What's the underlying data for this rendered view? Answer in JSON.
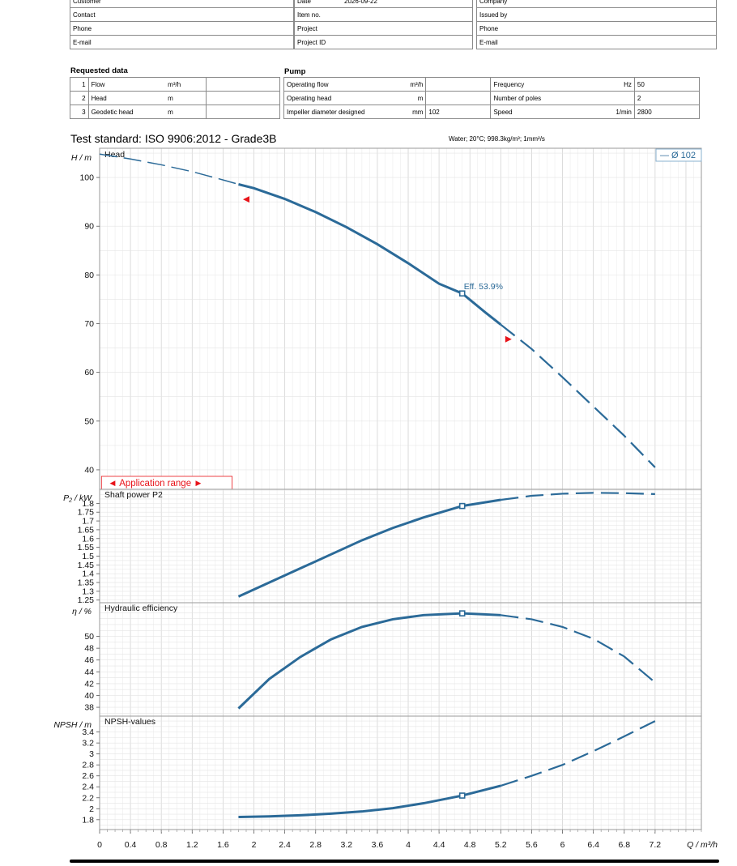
{
  "header": {
    "left": [
      {
        "label": "Customer",
        "value": ""
      },
      {
        "label": "Contact",
        "value": ""
      },
      {
        "label": "Phone",
        "value": ""
      },
      {
        "label": "E-mail",
        "value": ""
      }
    ],
    "middle": [
      {
        "label": "Date",
        "value": "2026-09-22"
      },
      {
        "label": "Item no.",
        "value": ""
      },
      {
        "label": "Project",
        "value": ""
      },
      {
        "label": "Project ID",
        "value": ""
      }
    ],
    "right": [
      {
        "label": "Company",
        "value": ""
      },
      {
        "label": "Issued by",
        "value": ""
      },
      {
        "label": "Phone",
        "value": ""
      },
      {
        "label": "E-mail",
        "value": ""
      }
    ]
  },
  "requested": {
    "title": "Requested data",
    "rows": [
      {
        "no": "1",
        "label": "Flow",
        "unit": "m³/h",
        "value": ""
      },
      {
        "no": "2",
        "label": "Head",
        "unit": "m",
        "value": ""
      },
      {
        "no": "3",
        "label": "Geodetic head",
        "unit": "m",
        "value": ""
      }
    ]
  },
  "pump": {
    "title": "Pump",
    "rows": [
      {
        "label": "Operating flow",
        "unit": "m³/h",
        "value": "",
        "label2": "Frequency",
        "unit2": "Hz",
        "value2": "50"
      },
      {
        "label": "Operating head",
        "unit": "m",
        "value": "",
        "label2": "Number of poles",
        "unit2": "",
        "value2": "2"
      },
      {
        "label": "Impeller diameter designed",
        "unit": "mm",
        "value": "102",
        "label2": "Speed",
        "unit2": "1/min",
        "value2": "2800"
      }
    ]
  },
  "test_standard": "Test standard: ISO 9906:2012 - Grade3B",
  "water": "Water; 20°C; 998.3kg/m³; 1mm²/s",
  "chart_data": [
    {
      "type": "line",
      "title": "Head",
      "ylabel": "H / m",
      "x_unit": "Q / m³/h",
      "xlim": [
        0,
        7.8
      ],
      "ylim": [
        36,
        106
      ],
      "yticks": [
        40,
        50,
        60,
        70,
        80,
        90,
        100
      ],
      "color": "#2b6a98",
      "legend": "— Ø 102",
      "legend_position": "top-right",
      "grid": true,
      "series": [
        {
          "x": [
            0,
            0.4,
            0.8,
            1.2,
            1.6,
            1.8,
            2.0,
            2.4,
            2.8,
            3.2,
            3.6,
            4.0,
            4.4,
            4.7,
            5.0,
            5.2,
            5.6,
            6.0,
            6.4,
            6.8,
            7.2
          ],
          "y": [
            104.8,
            103.8,
            102.6,
            101.2,
            99.5,
            98.6,
            97.8,
            95.6,
            92.9,
            89.8,
            86.3,
            82.4,
            78.2,
            76.2,
            72.3,
            69.8,
            64.8,
            59.0,
            53.0,
            47.0,
            40.5
          ],
          "solid_range": [
            1.8,
            5.2
          ]
        }
      ],
      "duty_point": {
        "x": 4.7,
        "y": 76.2
      },
      "annotation": "Eff. 53.9%",
      "range_markers": [
        {
          "x": 1.9,
          "y": 95.5,
          "dir": "left"
        },
        {
          "x": 5.3,
          "y": 66.8,
          "dir": "right"
        }
      ],
      "application_range": {
        "label": "◄ Application range ►",
        "x_from": 0.15,
        "x_to": 1.55
      }
    },
    {
      "type": "line",
      "title": "Shaft power P2",
      "ylabel": "P₂ / kW",
      "xlim": [
        0,
        7.8
      ],
      "ylim": [
        1.235,
        1.88
      ],
      "yticks": [
        1.25,
        1.3,
        1.35,
        1.4,
        1.45,
        1.5,
        1.55,
        1.6,
        1.65,
        1.7,
        1.75,
        1.8
      ],
      "color": "#2b6a98",
      "grid": true,
      "series": [
        {
          "x": [
            1.8,
            2.2,
            2.6,
            3.0,
            3.4,
            3.8,
            4.2,
            4.7,
            5.2,
            5.6,
            6.0,
            6.4,
            6.8,
            7.2
          ],
          "y": [
            1.27,
            1.35,
            1.43,
            1.51,
            1.59,
            1.66,
            1.72,
            1.785,
            1.82,
            1.843,
            1.855,
            1.86,
            1.858,
            1.853
          ],
          "solid_range": [
            1.8,
            5.2
          ]
        }
      ],
      "duty_point": {
        "x": 4.7,
        "y": 1.785
      }
    },
    {
      "type": "line",
      "title": "Hydraulic efficiency",
      "ylabel": "η / %",
      "xlim": [
        0,
        7.8
      ],
      "ylim": [
        36.5,
        55.7
      ],
      "yticks": [
        38,
        40,
        42,
        44,
        46,
        48,
        50
      ],
      "color": "#2b6a98",
      "grid": true,
      "series": [
        {
          "x": [
            1.8,
            2.2,
            2.6,
            3.0,
            3.4,
            3.8,
            4.2,
            4.7,
            5.2,
            5.6,
            6.0,
            6.4,
            6.8,
            7.2
          ],
          "y": [
            37.8,
            42.8,
            46.5,
            49.5,
            51.6,
            52.9,
            53.6,
            53.9,
            53.6,
            52.9,
            51.6,
            49.6,
            46.6,
            42.2
          ],
          "solid_range": [
            1.8,
            5.2
          ]
        }
      ],
      "duty_point": {
        "x": 4.7,
        "y": 53.9
      }
    },
    {
      "type": "line",
      "title": "NPSH-values",
      "ylabel": "NPSH / m",
      "xlabel": "Q / m³/h",
      "xlim": [
        0,
        7.8
      ],
      "xticks": [
        0,
        0.4,
        0.8,
        1.2,
        1.6,
        2,
        2.4,
        2.8,
        3.2,
        3.6,
        4,
        4.4,
        4.8,
        5.2,
        5.6,
        6,
        6.4,
        6.8,
        7.2
      ],
      "ylim": [
        1.62,
        3.69
      ],
      "yticks": [
        1.8,
        2,
        2.2,
        2.4,
        2.6,
        2.8,
        3,
        3.2,
        3.4
      ],
      "color": "#2b6a98",
      "grid": true,
      "series": [
        {
          "x": [
            1.8,
            2.2,
            2.6,
            3.0,
            3.4,
            3.8,
            4.2,
            4.7,
            5.2,
            5.6,
            6.0,
            6.4,
            6.8,
            7.2
          ],
          "y": [
            1.85,
            1.86,
            1.88,
            1.91,
            1.95,
            2.01,
            2.1,
            2.24,
            2.42,
            2.6,
            2.8,
            3.05,
            3.32,
            3.6
          ],
          "solid_range": [
            1.8,
            5.2
          ]
        }
      ],
      "duty_point": {
        "x": 4.7,
        "y": 2.24
      }
    }
  ]
}
